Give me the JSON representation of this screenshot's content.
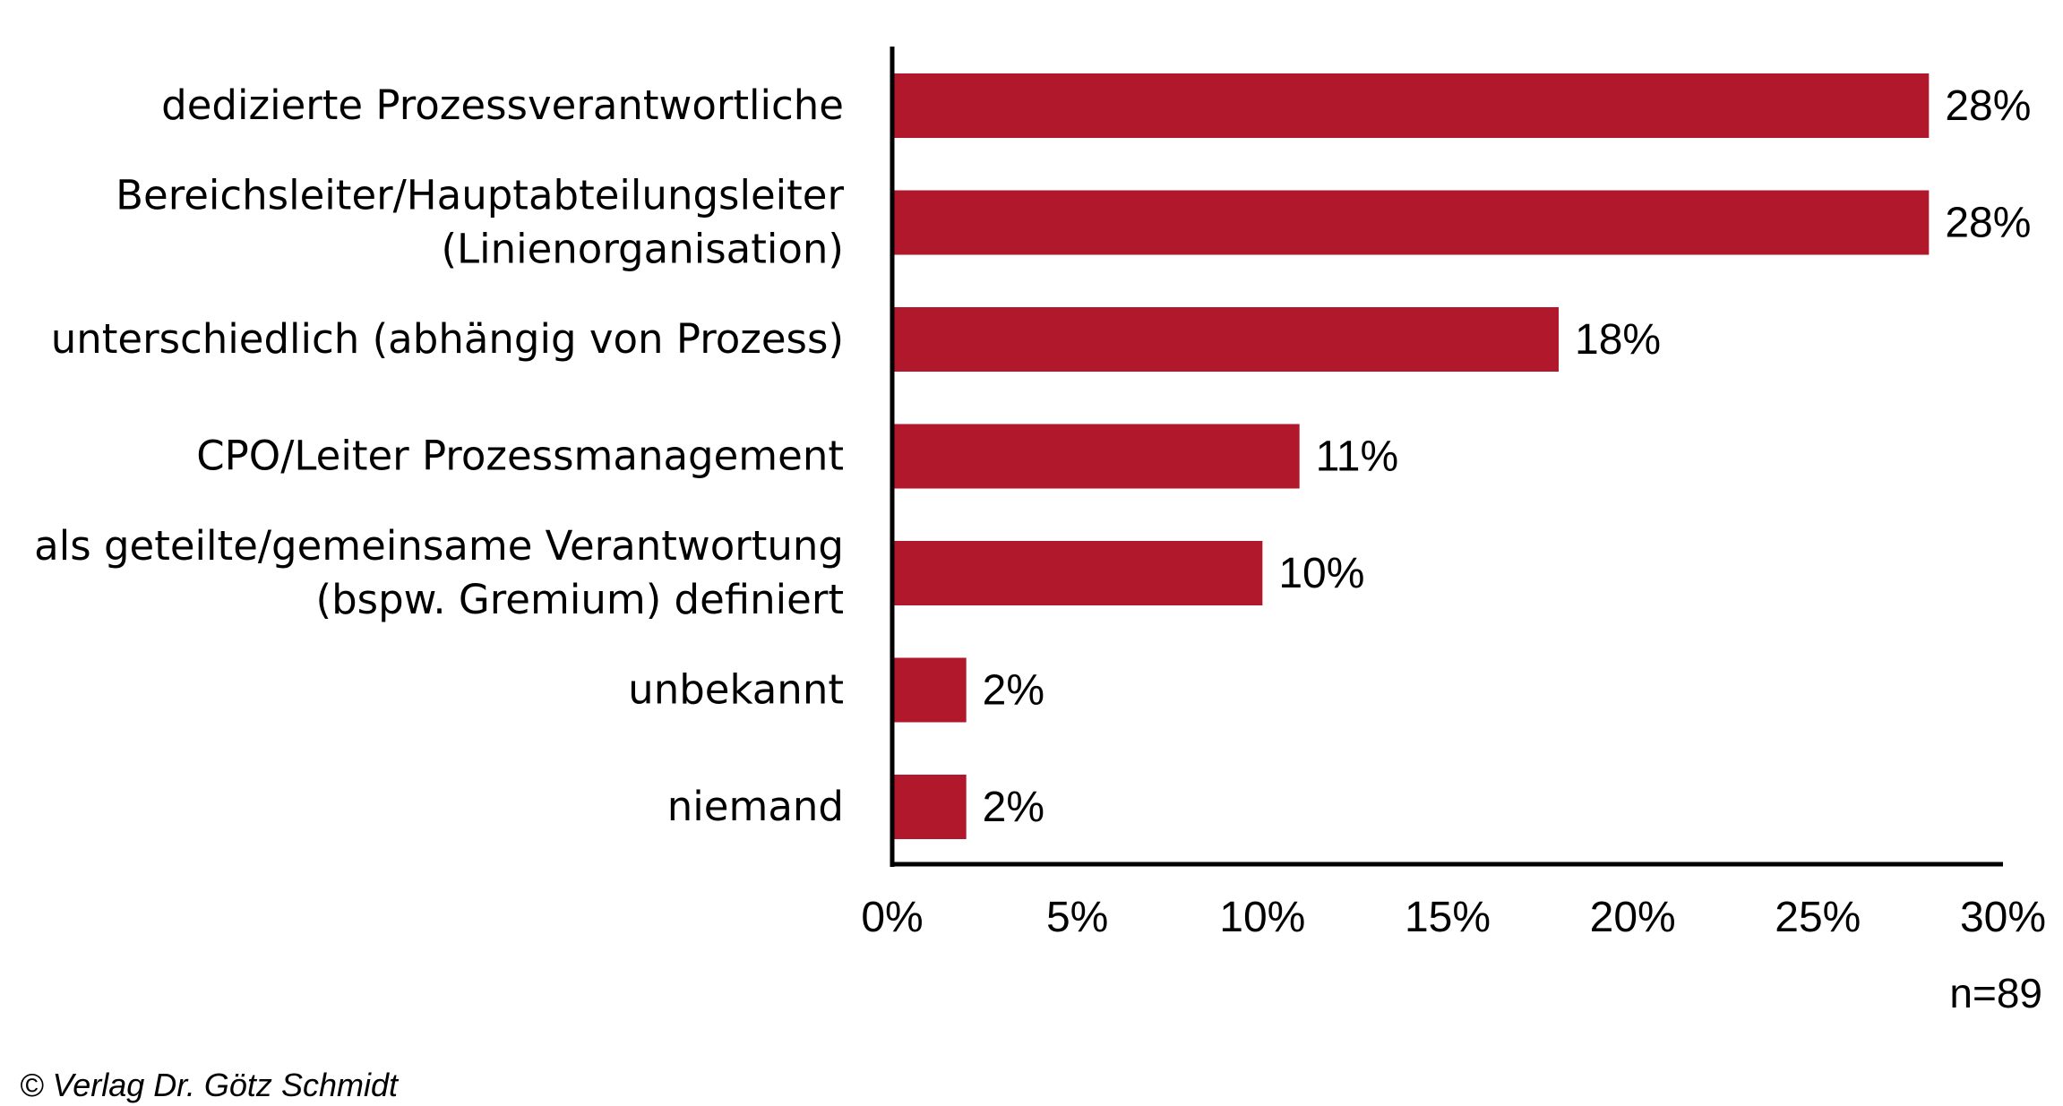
{
  "chart_data": {
    "type": "bar",
    "orientation": "horizontal",
    "categories": [
      [
        "dedizierte Prozessverantwortliche"
      ],
      [
        "Bereichsleiter/Hauptabteilungsleiter",
        "(Linienorganisation)"
      ],
      [
        "unterschiedlich (abhängig von Prozess)"
      ],
      [
        "CPO/Leiter Prozessmanagement"
      ],
      [
        "als geteilte/gemeinsame Verantwortung",
        "(bspw. Gremium) definiert"
      ],
      [
        "unbekannt"
      ],
      [
        "niemand"
      ]
    ],
    "values": [
      28,
      28,
      18,
      11,
      10,
      2,
      2
    ],
    "value_labels": [
      "28%",
      "28%",
      "18%",
      "11%",
      "10%",
      "2%",
      "2%"
    ],
    "xlim": [
      0,
      30
    ],
    "x_ticks": [
      0,
      5,
      10,
      15,
      20,
      25,
      30
    ],
    "x_tick_labels": [
      "0%",
      "5%",
      "10%",
      "15%",
      "20%",
      "25%",
      "30%"
    ],
    "bar_color": "#b2182b",
    "grid": false,
    "legend": "none"
  },
  "sample_note": "n=89",
  "copyright": "© Verlag Dr. Götz Schmidt"
}
